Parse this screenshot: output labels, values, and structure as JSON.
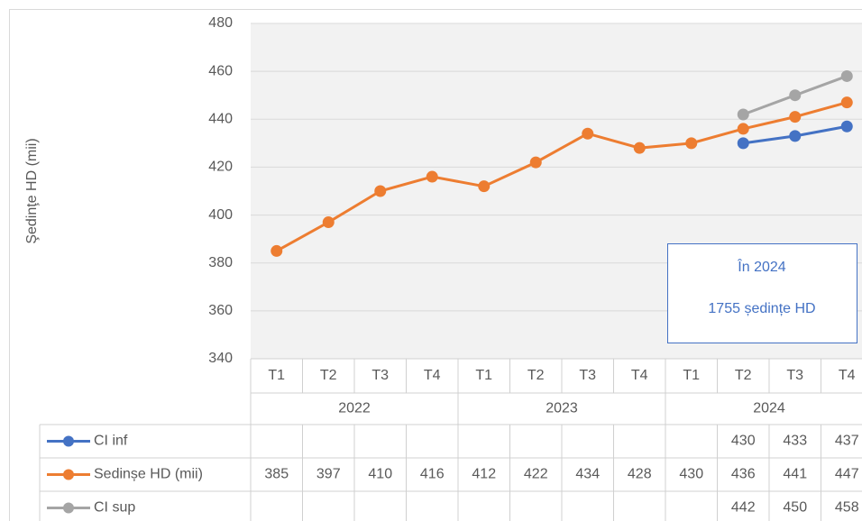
{
  "chart_data": {
    "type": "line",
    "y_axis_label": "Şedinţe HD (mii)",
    "categories": [
      "T1",
      "T2",
      "T3",
      "T4",
      "T1",
      "T2",
      "T3",
      "T4",
      "T1",
      "T2",
      "T3",
      "T4"
    ],
    "category_groups": [
      "2022",
      "2023",
      "2024"
    ],
    "series": [
      {
        "name": "CI inf",
        "color": "#4472c4",
        "values": [
          null,
          null,
          null,
          null,
          null,
          null,
          null,
          null,
          null,
          430,
          433,
          437
        ]
      },
      {
        "name": "Sedinșe HD (mii)",
        "color": "#ed7d31",
        "values": [
          385,
          397,
          410,
          416,
          412,
          422,
          434,
          428,
          430,
          436,
          441,
          447
        ]
      },
      {
        "name": "CI sup",
        "color": "#a5a5a5",
        "values": [
          null,
          null,
          null,
          null,
          null,
          null,
          null,
          null,
          null,
          442,
          450,
          458
        ]
      }
    ],
    "ylim": [
      340,
      480
    ],
    "yticks": [
      340,
      360,
      380,
      400,
      420,
      440,
      460,
      480
    ],
    "grid": true,
    "annotation": {
      "lines": [
        "În 2024",
        "1755 ședințe HD"
      ],
      "color": "#4472c4"
    }
  }
}
